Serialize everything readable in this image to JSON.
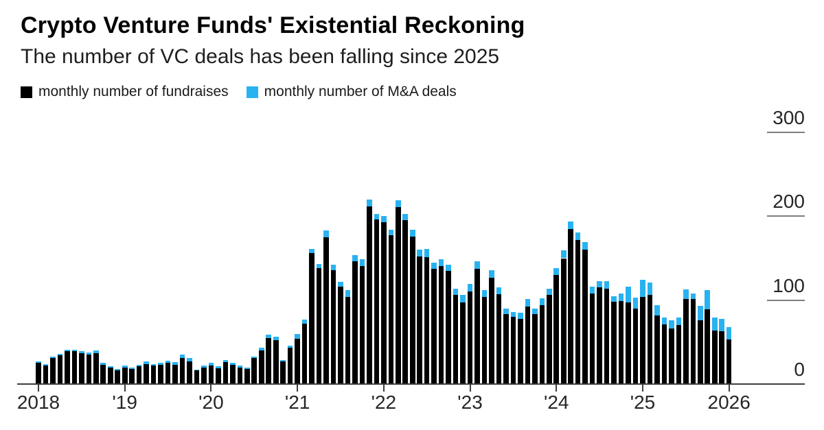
{
  "header": {
    "title": "Crypto Venture Funds' Existential Reckoning",
    "subtitle": "The number of VC deals has been falling since 2025"
  },
  "legend": [
    {
      "label": "monthly number of fundraises",
      "color": "#000000"
    },
    {
      "label": "monthly number of M&A deals",
      "color": "#29b2f0"
    }
  ],
  "chart_data": {
    "type": "bar",
    "stacked": true,
    "title": "Crypto Venture Funds' Existential Reckoning",
    "subtitle": "The number of VC deals has been falling since 2025",
    "x_start": "2018-01",
    "x_end": "2026-01",
    "x_interval": "month",
    "x_tick_labels": [
      "2018",
      "'19",
      "'20",
      "'21",
      "'22",
      "'23",
      "'24",
      "'25",
      "2026"
    ],
    "y_ticks": [
      0,
      100,
      200,
      300
    ],
    "ylim": [
      0,
      300
    ],
    "legend_position": "top-left",
    "gridlines": "short right-side tick dashes at 100, 200, 300; baseline at 0",
    "series": [
      {
        "name": "monthly number of fundraises",
        "color": "#000000",
        "values": [
          25,
          22,
          31,
          34,
          39,
          39,
          37,
          35,
          37,
          23,
          20,
          16,
          20,
          18,
          21,
          24,
          22,
          23,
          25,
          23,
          31,
          27,
          16,
          20,
          22,
          19,
          26,
          23,
          20,
          18,
          31,
          40,
          55,
          52,
          27,
          43,
          54,
          72,
          156,
          138,
          175,
          136,
          116,
          104,
          146,
          141,
          212,
          196,
          193,
          177,
          211,
          195,
          176,
          152,
          151,
          137,
          141,
          135,
          106,
          97,
          110,
          137,
          104,
          127,
          107,
          83,
          80,
          78,
          92,
          83,
          94,
          106,
          130,
          150,
          185,
          172,
          160,
          108,
          115,
          114,
          98,
          99,
          97,
          90,
          104,
          106,
          82,
          71,
          66,
          70,
          101,
          101,
          76,
          89,
          64,
          63,
          53
        ]
      },
      {
        "name": "monthly number of M&A deals",
        "color": "#29b2f0",
        "values": [
          2,
          2,
          2,
          2,
          2,
          2,
          2,
          3,
          3,
          2,
          1,
          2,
          2,
          2,
          2,
          3,
          2,
          2,
          3,
          3,
          4,
          4,
          1,
          2,
          3,
          2,
          3,
          2,
          2,
          2,
          2,
          3,
          4,
          4,
          2,
          3,
          6,
          5,
          5,
          5,
          8,
          6,
          6,
          8,
          8,
          8,
          8,
          7,
          7,
          7,
          8,
          8,
          8,
          8,
          10,
          8,
          8,
          7,
          8,
          9,
          9,
          9,
          8,
          9,
          8,
          7,
          6,
          7,
          9,
          7,
          8,
          8,
          8,
          9,
          9,
          9,
          9,
          8,
          8,
          9,
          7,
          9,
          19,
          13,
          20,
          15,
          12,
          8,
          10,
          9,
          12,
          7,
          17,
          23,
          15,
          15,
          15
        ]
      }
    ]
  }
}
